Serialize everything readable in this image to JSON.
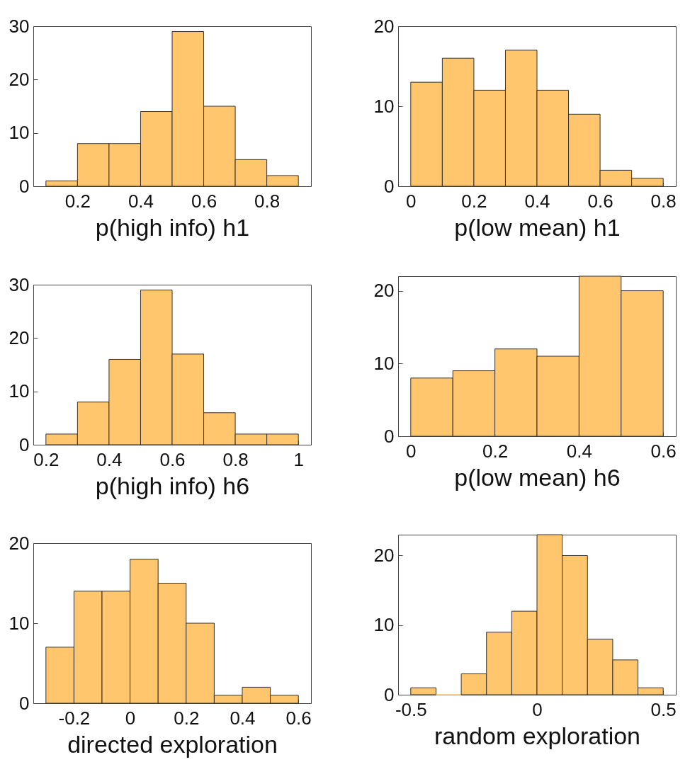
{
  "chart_data": [
    {
      "type": "histogram",
      "xlabel": "p(high info) h1",
      "bins": [
        0.1,
        0.2,
        0.3,
        0.4,
        0.5,
        0.6,
        0.7,
        0.8,
        0.9
      ],
      "values": [
        1,
        8,
        8,
        14,
        29,
        15,
        5,
        2
      ],
      "color": "#ffc66e",
      "xlim": [
        0.06,
        0.94
      ],
      "xticks": [
        0.2,
        0.4,
        0.6,
        0.8
      ],
      "ylim": [
        0,
        30
      ],
      "yticks": [
        0,
        10,
        20,
        30
      ]
    },
    {
      "type": "histogram",
      "xlabel": "p(low mean) h1",
      "bins": [
        0,
        0.1,
        0.2,
        0.3,
        0.4,
        0.5,
        0.6,
        0.7,
        0.8
      ],
      "values": [
        13,
        16,
        12,
        17,
        12,
        9,
        2,
        1
      ],
      "color": "#ffc66e",
      "xlim": [
        -0.04,
        0.84
      ],
      "xticks": [
        0,
        0.2,
        0.4,
        0.6,
        0.8
      ],
      "ylim": [
        0,
        20
      ],
      "yticks": [
        0,
        10,
        20
      ]
    },
    {
      "type": "histogram",
      "xlabel": "p(high info) h6",
      "bins": [
        0.2,
        0.3,
        0.4,
        0.5,
        0.6,
        0.7,
        0.8,
        0.9,
        1
      ],
      "values": [
        2,
        8,
        16,
        29,
        17,
        6,
        2,
        2
      ],
      "color": "#ffc66e",
      "xlim": [
        0.16,
        1.04
      ],
      "xticks": [
        0.2,
        0.4,
        0.6,
        0.8,
        1
      ],
      "ylim": [
        0,
        30
      ],
      "yticks": [
        0,
        10,
        20,
        30
      ]
    },
    {
      "type": "histogram",
      "xlabel": "p(low mean) h6",
      "bins": [
        0,
        0.1,
        0.2,
        0.3,
        0.4,
        0.5,
        0.6
      ],
      "values": [
        8,
        9,
        12,
        11,
        22,
        20
      ],
      "color": "#ffc66e",
      "xlim": [
        -0.03,
        0.63
      ],
      "xticks": [
        0,
        0.2,
        0.4,
        0.6
      ],
      "ylim": [
        0,
        22
      ],
      "yticks": [
        0,
        10,
        20
      ]
    },
    {
      "type": "histogram",
      "xlabel": "directed exploration",
      "bins": [
        -0.3,
        -0.2,
        -0.1,
        0,
        0.1,
        0.2,
        0.3,
        0.4,
        0.5,
        0.6
      ],
      "values": [
        7,
        14,
        14,
        18,
        15,
        10,
        1,
        2,
        1
      ],
      "color": "#ffc66e",
      "xlim": [
        -0.345,
        0.645
      ],
      "xticks": [
        -0.2,
        0,
        0.2,
        0.4,
        0.6
      ],
      "ylim": [
        0,
        20
      ],
      "yticks": [
        0,
        10,
        20
      ]
    },
    {
      "type": "histogram",
      "xlabel": "random exploration",
      "bins": [
        -0.5,
        -0.4,
        -0.3,
        -0.2,
        -0.1,
        0,
        0.1,
        0.2,
        0.3,
        0.4,
        0.5
      ],
      "values": [
        1,
        0,
        3,
        9,
        12,
        23,
        20,
        8,
        5,
        1
      ],
      "color": "#ffc66e",
      "xlim": [
        -0.55,
        0.55
      ],
      "xticks": [
        -0.5,
        0,
        0.5
      ],
      "ylim": [
        0,
        23
      ],
      "yticks": [
        0,
        10,
        20
      ]
    }
  ]
}
